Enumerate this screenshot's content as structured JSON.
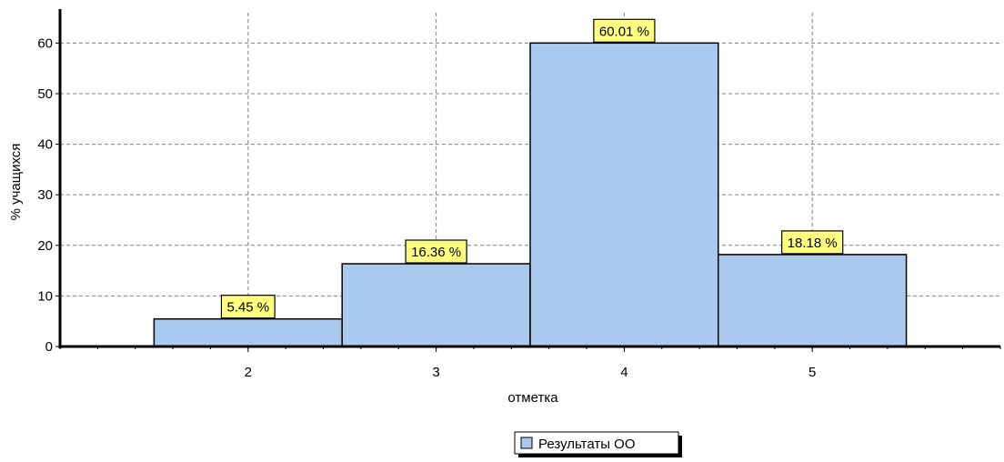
{
  "chart_data": {
    "type": "bar",
    "categories": [
      "2",
      "3",
      "4",
      "5"
    ],
    "series": [
      {
        "name": "Результаты ОО",
        "values": [
          5.45,
          16.36,
          60.01,
          18.18
        ],
        "labels": [
          "5.45 %",
          "16.36 %",
          "60.01 %",
          "18.18 %"
        ]
      }
    ],
    "xlabel": "отметка",
    "ylabel": "% учащихся",
    "ylim": [
      0,
      66
    ],
    "xlim": [
      1,
      6
    ],
    "yticks": [
      0,
      10,
      20,
      30,
      40,
      50,
      60
    ],
    "grid": true,
    "legend_position": "bottom",
    "colors": {
      "bar_fill": "#a9c9ef",
      "bar_stroke": "#000000",
      "label_fill": "#ffff80",
      "grid": "#808080"
    }
  }
}
